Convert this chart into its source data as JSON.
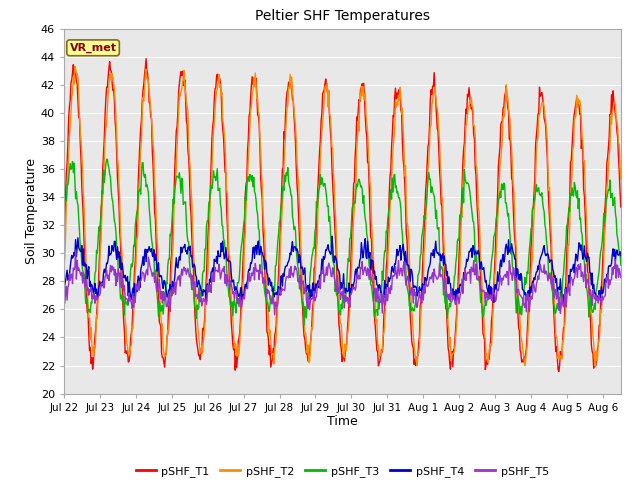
{
  "title": "Peltier SHF Temperatures",
  "xlabel": "Time",
  "ylabel": "Soil Temperature",
  "ylim": [
    20,
    46
  ],
  "fig_bg_color": "#ffffff",
  "plot_bg_color": "#e8e8e8",
  "series_colors": {
    "pSHF_T1": "#ff0000",
    "pSHF_T2": "#ff8c00",
    "pSHF_T3": "#00bb00",
    "pSHF_T4": "#0000cc",
    "pSHF_T5": "#9932cc"
  },
  "annotation_text": "VR_met",
  "annotation_bg": "#ffff99",
  "annotation_border": "#8b6914",
  "annotation_text_color": "#8b0000",
  "tick_days": [
    "Jul 22",
    "Jul 23",
    "Jul 24",
    "Jul 25",
    "Jul 26",
    "Jul 27",
    "Jul 28",
    "Jul 29",
    "Jul 30",
    "Jul 31",
    "Aug 1",
    "Aug 2",
    "Aug 3",
    "Aug 4",
    "Aug 5",
    "Aug 6"
  ],
  "yticks": [
    20,
    22,
    24,
    26,
    28,
    30,
    32,
    34,
    36,
    38,
    40,
    42,
    44,
    46
  ],
  "grid_color": "#ffffff",
  "lw": 1.0
}
